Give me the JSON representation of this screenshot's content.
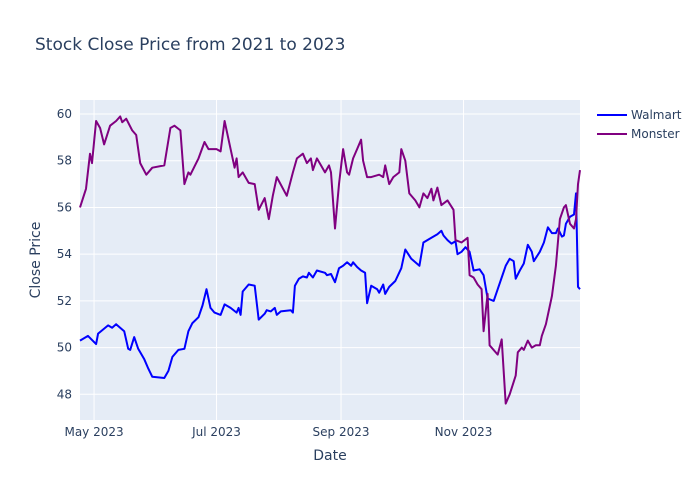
{
  "chart_data": {
    "type": "line",
    "title": "Stock Close Price from 2021 to 2023",
    "xlabel": "Date",
    "ylabel": "Close Price",
    "xlim": [
      "2023-04-24",
      "2023-12-29"
    ],
    "ylim": [
      46.9,
      60.6
    ],
    "x_ticks": [
      {
        "date": "2023-05-01",
        "label": "May 2023"
      },
      {
        "date": "2023-07-01",
        "label": "Jul 2023"
      },
      {
        "date": "2023-09-01",
        "label": "Sep 2023"
      },
      {
        "date": "2023-11-01",
        "label": "Nov 2023"
      }
    ],
    "y_ticks": [
      48,
      50,
      52,
      54,
      56,
      58,
      60
    ],
    "grid": true,
    "legend_position": "top-right",
    "series": [
      {
        "name": "Walmart",
        "color": "#0000ff",
        "points": [
          [
            "2023-04-24",
            50.3
          ],
          [
            "2023-04-28",
            50.5
          ],
          [
            "2023-05-02",
            50.15
          ],
          [
            "2023-05-03",
            50.6
          ],
          [
            "2023-05-08",
            50.95
          ],
          [
            "2023-05-10",
            50.85
          ],
          [
            "2023-05-12",
            51.0
          ],
          [
            "2023-05-16",
            50.7
          ],
          [
            "2023-05-18",
            49.95
          ],
          [
            "2023-05-19",
            49.9
          ],
          [
            "2023-05-21",
            50.45
          ],
          [
            "2023-05-23",
            49.95
          ],
          [
            "2023-05-26",
            49.5
          ],
          [
            "2023-05-28",
            49.1
          ],
          [
            "2023-05-30",
            48.75
          ],
          [
            "2023-06-05",
            48.7
          ],
          [
            "2023-06-07",
            49.0
          ],
          [
            "2023-06-09",
            49.6
          ],
          [
            "2023-06-12",
            49.9
          ],
          [
            "2023-06-15",
            49.95
          ],
          [
            "2023-06-17",
            50.7
          ],
          [
            "2023-06-19",
            51.05
          ],
          [
            "2023-06-22",
            51.3
          ],
          [
            "2023-06-24",
            51.8
          ],
          [
            "2023-06-26",
            52.5
          ],
          [
            "2023-06-28",
            51.7
          ],
          [
            "2023-06-30",
            51.5
          ],
          [
            "2023-07-03",
            51.4
          ],
          [
            "2023-07-05",
            51.85
          ],
          [
            "2023-07-08",
            51.7
          ],
          [
            "2023-07-11",
            51.5
          ],
          [
            "2023-07-12",
            51.7
          ],
          [
            "2023-07-13",
            51.4
          ],
          [
            "2023-07-14",
            52.4
          ],
          [
            "2023-07-17",
            52.7
          ],
          [
            "2023-07-20",
            52.65
          ],
          [
            "2023-07-22",
            51.2
          ],
          [
            "2023-07-25",
            51.45
          ],
          [
            "2023-07-26",
            51.6
          ],
          [
            "2023-07-28",
            51.55
          ],
          [
            "2023-07-30",
            51.7
          ],
          [
            "2023-07-31",
            51.4
          ],
          [
            "2023-08-02",
            51.55
          ],
          [
            "2023-08-07",
            51.6
          ],
          [
            "2023-08-08",
            51.5
          ],
          [
            "2023-08-09",
            52.65
          ],
          [
            "2023-08-11",
            52.95
          ],
          [
            "2023-08-13",
            53.05
          ],
          [
            "2023-08-15",
            53.0
          ],
          [
            "2023-08-16",
            53.2
          ],
          [
            "2023-08-18",
            53.0
          ],
          [
            "2023-08-20",
            53.3
          ],
          [
            "2023-08-24",
            53.2
          ],
          [
            "2023-08-25",
            53.1
          ],
          [
            "2023-08-27",
            53.15
          ],
          [
            "2023-08-29",
            52.8
          ],
          [
            "2023-08-31",
            53.4
          ],
          [
            "2023-09-02",
            53.5
          ],
          [
            "2023-09-04",
            53.65
          ],
          [
            "2023-09-06",
            53.5
          ],
          [
            "2023-09-07",
            53.65
          ],
          [
            "2023-09-09",
            53.45
          ],
          [
            "2023-09-11",
            53.3
          ],
          [
            "2023-09-13",
            53.2
          ],
          [
            "2023-09-14",
            51.9
          ],
          [
            "2023-09-16",
            52.65
          ],
          [
            "2023-09-19",
            52.5
          ],
          [
            "2023-09-20",
            52.35
          ],
          [
            "2023-09-22",
            52.7
          ],
          [
            "2023-09-23",
            52.3
          ],
          [
            "2023-09-25",
            52.6
          ],
          [
            "2023-09-28",
            52.85
          ],
          [
            "2023-10-01",
            53.4
          ],
          [
            "2023-10-03",
            54.2
          ],
          [
            "2023-10-06",
            53.8
          ],
          [
            "2023-10-10",
            53.5
          ],
          [
            "2023-10-12",
            54.5
          ],
          [
            "2023-10-14",
            54.6
          ],
          [
            "2023-10-16",
            54.7
          ],
          [
            "2023-10-19",
            54.85
          ],
          [
            "2023-10-21",
            55.0
          ],
          [
            "2023-10-22",
            54.8
          ],
          [
            "2023-10-24",
            54.6
          ],
          [
            "2023-10-26",
            54.45
          ],
          [
            "2023-10-28",
            54.55
          ],
          [
            "2023-10-29",
            54.0
          ],
          [
            "2023-10-31",
            54.1
          ],
          [
            "2023-11-02",
            54.3
          ],
          [
            "2023-11-04",
            54.1
          ],
          [
            "2023-11-06",
            53.3
          ],
          [
            "2023-11-09",
            53.35
          ],
          [
            "2023-11-11",
            53.1
          ],
          [
            "2023-11-13",
            52.1
          ],
          [
            "2023-11-16",
            52.0
          ],
          [
            "2023-11-18",
            52.5
          ],
          [
            "2023-11-20",
            53.0
          ],
          [
            "2023-11-22",
            53.5
          ],
          [
            "2023-11-24",
            53.8
          ],
          [
            "2023-11-26",
            53.7
          ],
          [
            "2023-11-27",
            52.95
          ],
          [
            "2023-11-29",
            53.3
          ],
          [
            "2023-12-01",
            53.6
          ],
          [
            "2023-12-03",
            54.4
          ],
          [
            "2023-12-05",
            54.1
          ],
          [
            "2023-12-06",
            53.7
          ],
          [
            "2023-12-09",
            54.1
          ],
          [
            "2023-12-11",
            54.5
          ],
          [
            "2023-12-13",
            55.15
          ],
          [
            "2023-12-15",
            54.9
          ],
          [
            "2023-12-17",
            54.9
          ],
          [
            "2023-12-18",
            55.1
          ],
          [
            "2023-12-20",
            54.75
          ],
          [
            "2023-12-21",
            54.8
          ],
          [
            "2023-12-22",
            55.3
          ],
          [
            "2023-12-24",
            55.6
          ],
          [
            "2023-12-26",
            55.7
          ],
          [
            "2023-12-27",
            56.6
          ],
          [
            "2023-12-28",
            52.6
          ],
          [
            "2023-12-29",
            52.5
          ]
        ]
      },
      {
        "name": "Monster",
        "color": "#800080",
        "points": [
          [
            "2023-04-24",
            56.0
          ],
          [
            "2023-04-27",
            56.8
          ],
          [
            "2023-04-29",
            58.3
          ],
          [
            "2023-04-30",
            57.9
          ],
          [
            "2023-05-02",
            59.7
          ],
          [
            "2023-05-04",
            59.4
          ],
          [
            "2023-05-06",
            58.7
          ],
          [
            "2023-05-09",
            59.5
          ],
          [
            "2023-05-12",
            59.7
          ],
          [
            "2023-05-14",
            59.9
          ],
          [
            "2023-05-15",
            59.65
          ],
          [
            "2023-05-17",
            59.8
          ],
          [
            "2023-05-20",
            59.3
          ],
          [
            "2023-05-22",
            59.1
          ],
          [
            "2023-05-24",
            57.9
          ],
          [
            "2023-05-27",
            57.4
          ],
          [
            "2023-05-30",
            57.7
          ],
          [
            "2023-06-05",
            57.8
          ],
          [
            "2023-06-08",
            59.4
          ],
          [
            "2023-06-10",
            59.5
          ],
          [
            "2023-06-13",
            59.3
          ],
          [
            "2023-06-15",
            57.0
          ],
          [
            "2023-06-17",
            57.5
          ],
          [
            "2023-06-18",
            57.4
          ],
          [
            "2023-06-22",
            58.1
          ],
          [
            "2023-06-25",
            58.8
          ],
          [
            "2023-06-27",
            58.5
          ],
          [
            "2023-07-01",
            58.5
          ],
          [
            "2023-07-03",
            58.4
          ],
          [
            "2023-07-05",
            59.7
          ],
          [
            "2023-07-08",
            58.5
          ],
          [
            "2023-07-10",
            57.7
          ],
          [
            "2023-07-11",
            58.1
          ],
          [
            "2023-07-12",
            57.3
          ],
          [
            "2023-07-14",
            57.5
          ],
          [
            "2023-07-17",
            57.05
          ],
          [
            "2023-07-20",
            57.0
          ],
          [
            "2023-07-22",
            55.9
          ],
          [
            "2023-07-25",
            56.4
          ],
          [
            "2023-07-27",
            55.5
          ],
          [
            "2023-07-29",
            56.5
          ],
          [
            "2023-07-31",
            57.3
          ],
          [
            "2023-08-05",
            56.5
          ],
          [
            "2023-08-08",
            57.5
          ],
          [
            "2023-08-10",
            58.1
          ],
          [
            "2023-08-13",
            58.3
          ],
          [
            "2023-08-15",
            57.9
          ],
          [
            "2023-08-17",
            58.1
          ],
          [
            "2023-08-18",
            57.6
          ],
          [
            "2023-08-20",
            58.1
          ],
          [
            "2023-08-22",
            57.8
          ],
          [
            "2023-08-24",
            57.5
          ],
          [
            "2023-08-26",
            57.8
          ],
          [
            "2023-08-27",
            57.5
          ],
          [
            "2023-08-29",
            55.1
          ],
          [
            "2023-08-31",
            57.0
          ],
          [
            "2023-09-02",
            58.5
          ],
          [
            "2023-09-04",
            57.5
          ],
          [
            "2023-09-05",
            57.4
          ],
          [
            "2023-09-07",
            58.1
          ],
          [
            "2023-09-09",
            58.5
          ],
          [
            "2023-09-11",
            58.9
          ],
          [
            "2023-09-12",
            58.0
          ],
          [
            "2023-09-14",
            57.3
          ],
          [
            "2023-09-16",
            57.3
          ],
          [
            "2023-09-20",
            57.4
          ],
          [
            "2023-09-22",
            57.3
          ],
          [
            "2023-09-23",
            57.8
          ],
          [
            "2023-09-25",
            57.0
          ],
          [
            "2023-09-27",
            57.3
          ],
          [
            "2023-09-30",
            57.5
          ],
          [
            "2023-10-01",
            58.5
          ],
          [
            "2023-10-03",
            58.0
          ],
          [
            "2023-10-05",
            56.6
          ],
          [
            "2023-10-08",
            56.3
          ],
          [
            "2023-10-10",
            56.0
          ],
          [
            "2023-10-12",
            56.6
          ],
          [
            "2023-10-14",
            56.4
          ],
          [
            "2023-10-16",
            56.8
          ],
          [
            "2023-10-17",
            56.3
          ],
          [
            "2023-10-19",
            56.85
          ],
          [
            "2023-10-21",
            56.1
          ],
          [
            "2023-10-24",
            56.3
          ],
          [
            "2023-10-27",
            55.9
          ],
          [
            "2023-10-28",
            54.6
          ],
          [
            "2023-10-31",
            54.5
          ],
          [
            "2023-11-03",
            54.7
          ],
          [
            "2023-11-04",
            53.1
          ],
          [
            "2023-11-06",
            53.0
          ],
          [
            "2023-11-08",
            52.7
          ],
          [
            "2023-11-10",
            52.5
          ],
          [
            "2023-11-11",
            50.7
          ],
          [
            "2023-11-13",
            52.3
          ],
          [
            "2023-11-14",
            50.1
          ],
          [
            "2023-11-18",
            49.7
          ],
          [
            "2023-11-20",
            50.35
          ],
          [
            "2023-11-22",
            47.6
          ],
          [
            "2023-11-24",
            48.0
          ],
          [
            "2023-11-27",
            48.8
          ],
          [
            "2023-11-28",
            49.8
          ],
          [
            "2023-11-30",
            50.0
          ],
          [
            "2023-12-01",
            49.9
          ],
          [
            "2023-12-03",
            50.3
          ],
          [
            "2023-12-05",
            50.0
          ],
          [
            "2023-12-07",
            50.1
          ],
          [
            "2023-12-09",
            50.1
          ],
          [
            "2023-12-10",
            50.5
          ],
          [
            "2023-12-12",
            51.0
          ],
          [
            "2023-12-14",
            51.8
          ],
          [
            "2023-12-15",
            52.2
          ],
          [
            "2023-12-17",
            53.5
          ],
          [
            "2023-12-19",
            55.5
          ],
          [
            "2023-12-21",
            56.0
          ],
          [
            "2023-12-22",
            56.1
          ],
          [
            "2023-12-24",
            55.3
          ],
          [
            "2023-12-26",
            55.1
          ],
          [
            "2023-12-27",
            55.5
          ],
          [
            "2023-12-28",
            57.0
          ],
          [
            "2023-12-29",
            57.6
          ]
        ]
      }
    ]
  }
}
